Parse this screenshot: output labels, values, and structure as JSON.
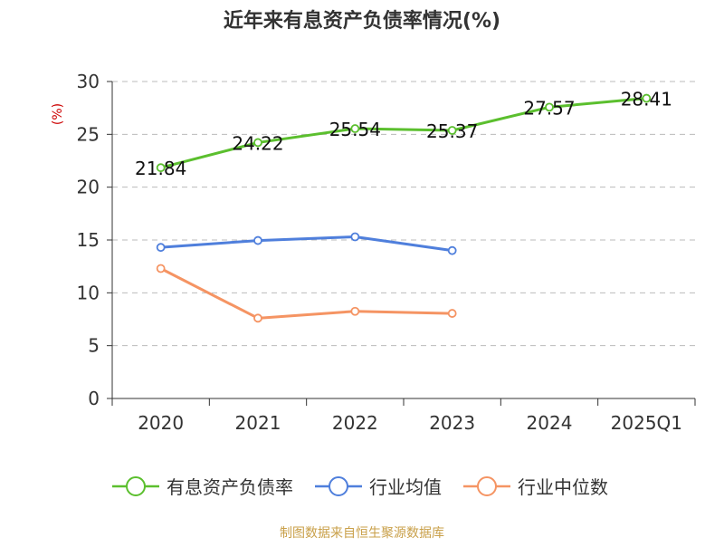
{
  "chart_data": {
    "type": "line",
    "title": "近年来有息资产负债率情况(%)",
    "ylabel": "(%)",
    "xlabel": "",
    "categories": [
      "2020",
      "2021",
      "2022",
      "2023",
      "2024",
      "2025Q1"
    ],
    "ylim": [
      0,
      30
    ],
    "yticks": [
      0,
      5,
      10,
      15,
      20,
      25,
      30
    ],
    "grid": true,
    "legend_position": "bottom",
    "series": [
      {
        "name": "有息资产负债率",
        "color": "#5bbf2e",
        "values": [
          21.84,
          24.22,
          25.54,
          25.37,
          27.57,
          28.41
        ],
        "labels": [
          "21.84",
          "24.22",
          "25.54",
          "25.37",
          "27.57",
          "28.41"
        ]
      },
      {
        "name": "行业均值",
        "color": "#4f7fdc",
        "values": [
          14.3,
          14.95,
          15.3,
          14.0,
          null,
          null
        ]
      },
      {
        "name": "行业中位数",
        "color": "#f59463",
        "values": [
          12.3,
          7.6,
          8.25,
          8.05,
          null,
          null
        ]
      }
    ]
  },
  "footer": {
    "source": "制图数据来自恒生聚源数据库",
    "color": "#c9a04a"
  }
}
